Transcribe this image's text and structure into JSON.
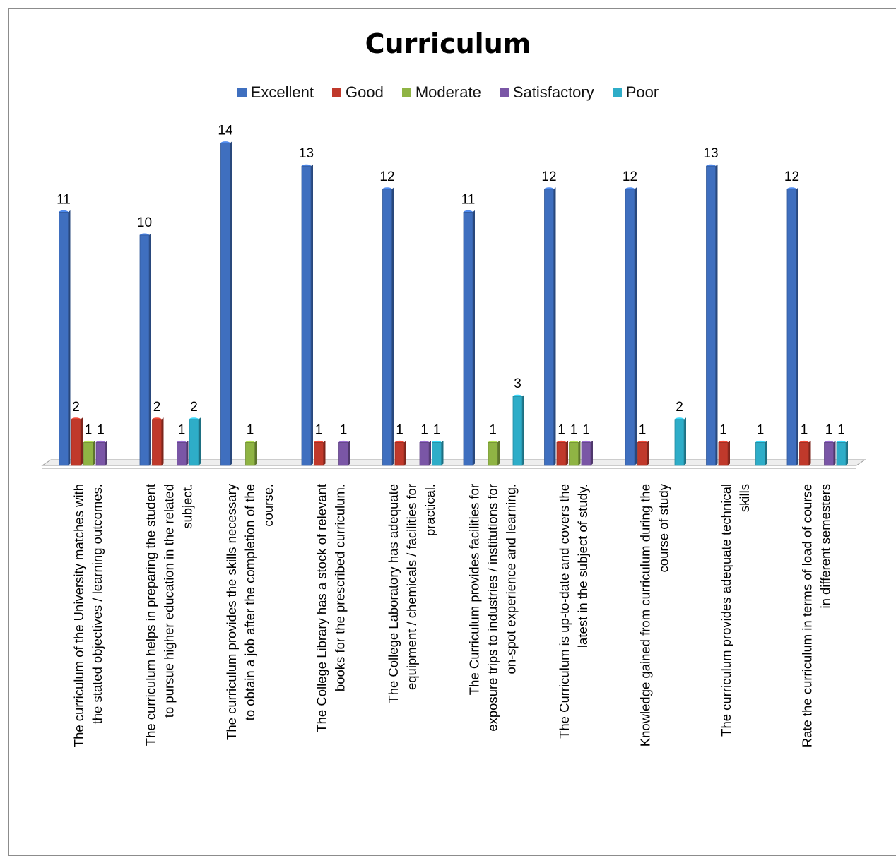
{
  "chart_data": {
    "type": "bar",
    "title": "Curriculum",
    "categories": [
      [
        "The curriculum of the University matches with",
        "the stated objectives / learning outcomes."
      ],
      [
        "The curriculum helps in preparing the student",
        "to pursue higher education in the related",
        "subject."
      ],
      [
        "The curriculum provides the skills necessary",
        "to obtain a job after the completion of the",
        "course."
      ],
      [
        "The College Library has a stock of relevant",
        "books for the prescribed curriculum."
      ],
      [
        "The College Laboratory has adequate",
        "equipment / chemicals / facilities for",
        "practical."
      ],
      [
        "The Curriculum provides facilities for",
        "exposure trips to industries / institutions for",
        "on-spot experience and learning."
      ],
      [
        "The Curriculum is up-to-date and covers the",
        "latest in the subject of study."
      ],
      [
        "Knowledge gained from curriculum during the",
        "course of study"
      ],
      [
        "The curriculum provides adequate technical",
        "skills"
      ],
      [
        "Rate the curriculum in terms of load of course",
        "in different semesters"
      ]
    ],
    "series": [
      {
        "name": "Excellent",
        "color": "#3f6fbf",
        "values": [
          11,
          10,
          14,
          13,
          12,
          11,
          12,
          12,
          13,
          12
        ]
      },
      {
        "name": "Good",
        "color": "#c0392b",
        "values": [
          2,
          2,
          null,
          1,
          1,
          null,
          1,
          1,
          1,
          1
        ]
      },
      {
        "name": "Moderate",
        "color": "#8fb444",
        "values": [
          1,
          null,
          1,
          null,
          null,
          1,
          1,
          null,
          null,
          null
        ]
      },
      {
        "name": "Satisfactory",
        "color": "#7a56a6",
        "values": [
          1,
          1,
          null,
          1,
          1,
          null,
          1,
          null,
          null,
          1
        ]
      },
      {
        "name": "Poor",
        "color": "#2eadc8",
        "values": [
          null,
          2,
          null,
          null,
          1,
          3,
          null,
          2,
          1,
          1
        ]
      }
    ],
    "ylim": [
      0,
      14
    ],
    "legend": "top",
    "grid": false
  }
}
